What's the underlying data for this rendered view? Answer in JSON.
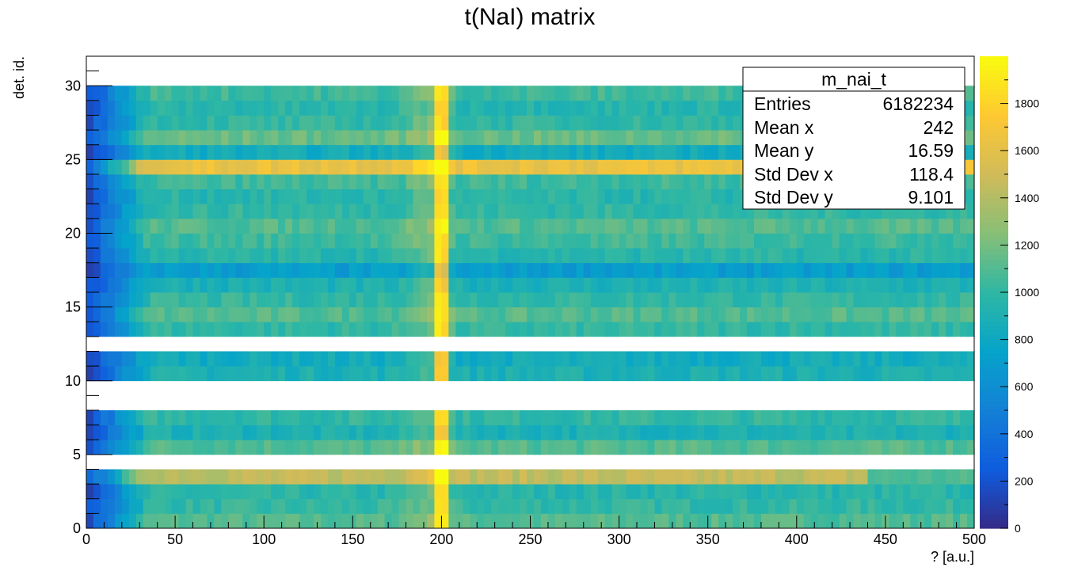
{
  "chart_data": {
    "type": "heatmap",
    "title": "t(NaI) matrix",
    "xlabel": "? [a.u.]",
    "ylabel": "det. id.",
    "xlim": [
      0,
      500
    ],
    "ylim": [
      0,
      32
    ],
    "zlim": [
      0,
      2000
    ],
    "x_ticks": [
      0,
      50,
      100,
      150,
      200,
      250,
      300,
      350,
      400,
      450,
      500
    ],
    "y_ticks": [
      0,
      5,
      10,
      15,
      20,
      25,
      30
    ],
    "z_ticks": [
      0,
      200,
      400,
      600,
      800,
      1000,
      1200,
      1400,
      1600,
      1800
    ],
    "colormap": "kBird",
    "peak_x": 200,
    "empty_rows": [
      4,
      8,
      9,
      12,
      30,
      31
    ],
    "row_levels": [
      {
        "det": 0,
        "level": 0.55
      },
      {
        "det": 1,
        "level": 0.5
      },
      {
        "det": 2,
        "level": 0.48
      },
      {
        "det": 3,
        "level": 0.72
      },
      {
        "det": 5,
        "level": 0.55
      },
      {
        "det": 6,
        "level": 0.45
      },
      {
        "det": 7,
        "level": 0.5
      },
      {
        "det": 10,
        "level": 0.45
      },
      {
        "det": 11,
        "level": 0.42
      },
      {
        "det": 13,
        "level": 0.5
      },
      {
        "det": 14,
        "level": 0.55
      },
      {
        "det": 15,
        "level": 0.5
      },
      {
        "det": 16,
        "level": 0.45
      },
      {
        "det": 17,
        "level": 0.35
      },
      {
        "det": 18,
        "level": 0.48
      },
      {
        "det": 19,
        "level": 0.52
      },
      {
        "det": 20,
        "level": 0.55
      },
      {
        "det": 21,
        "level": 0.5
      },
      {
        "det": 22,
        "level": 0.48
      },
      {
        "det": 23,
        "level": 0.52
      },
      {
        "det": 24,
        "level": 0.82
      },
      {
        "det": 25,
        "level": 0.42
      },
      {
        "det": 26,
        "level": 0.58
      },
      {
        "det": 27,
        "level": 0.5
      },
      {
        "det": 28,
        "level": 0.48
      },
      {
        "det": 29,
        "level": 0.52
      }
    ],
    "stats": {
      "name": "m_nai_t",
      "rows": [
        {
          "label": "Entries",
          "value": "6182234"
        },
        {
          "label": "Mean x",
          "value": "242"
        },
        {
          "label": "Mean y",
          "value": "16.59"
        },
        {
          "label": "Std Dev x",
          "value": "118.4"
        },
        {
          "label": "Std Dev y",
          "value": "9.101"
        }
      ]
    }
  }
}
